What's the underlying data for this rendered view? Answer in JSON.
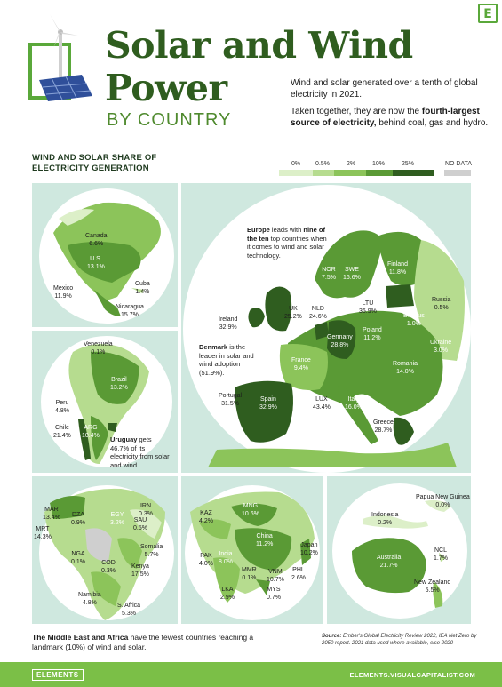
{
  "header": {
    "badge": "E",
    "title_line1": "Solar and Wind",
    "title_line2": "Power",
    "subtitle": "BY COUNTRY",
    "intro_p1": "Wind and solar generated over a tenth of global electricity in 2021.",
    "intro_p2_pre": "Taken together, they are now the",
    "intro_p2_bold": "fourth-largest source of electricity,",
    "intro_p2_post": "behind coal, gas and hydro."
  },
  "section_label": "WIND AND SOLAR SHARE OF ELECTRICITY GENERATION",
  "legend": {
    "labels": [
      "0%",
      "0.5%",
      "2%",
      "10%",
      "25%",
      "NO DATA"
    ],
    "colors": [
      "#dcefc8",
      "#b6dc8f",
      "#8cc45a",
      "#5a9a35",
      "#2f5d1f",
      "#cfcfcf"
    ]
  },
  "americas": {
    "labels": [
      {
        "name": "Canada",
        "value": "6.6%"
      },
      {
        "name": "U.S.",
        "value": "13.1%"
      },
      {
        "name": "Mexico",
        "value": "11.9%"
      },
      {
        "name": "Cuba",
        "value": "1.4%"
      },
      {
        "name": "Nicaragua",
        "value": "15.7%"
      }
    ]
  },
  "south_america": {
    "labels": [
      {
        "name": "Venezuela",
        "value": "0.1%"
      },
      {
        "name": "Brazil",
        "value": "13.2%"
      },
      {
        "name": "Peru",
        "value": "4.8%"
      },
      {
        "name": "Chile",
        "value": "21.4%"
      },
      {
        "name": "ARG",
        "value": "10.4%"
      }
    ],
    "callout_bold": "Uruguay",
    "callout_rest": " gets 46.7% of its electricity from solar and wind."
  },
  "europe": {
    "callout_bold1": "Europe",
    "callout_mid": " leads with ",
    "callout_bold2": "nine of the ten",
    "callout_rest": " top countries when it comes to wind and solar technology.",
    "denmark_bold": "Denmark",
    "denmark_rest": " is the leader in solar and wind adoption (51.9%).",
    "labels": [
      {
        "name": "NOR",
        "value": "7.5%"
      },
      {
        "name": "SWE",
        "value": "16.6%"
      },
      {
        "name": "Finland",
        "value": "11.8%"
      },
      {
        "name": "Russia",
        "value": "0.5%"
      },
      {
        "name": "UK",
        "value": "25.2%"
      },
      {
        "name": "NLD",
        "value": "24.6%"
      },
      {
        "name": "LTU",
        "value": "36.9%"
      },
      {
        "name": "Belarus",
        "value": "1.0%"
      },
      {
        "name": "Ireland",
        "value": "32.9%"
      },
      {
        "name": "Germany",
        "value": "28.8%"
      },
      {
        "name": "Poland",
        "value": "11.2%"
      },
      {
        "name": "Ukraine",
        "value": "3.0%"
      },
      {
        "name": "France",
        "value": "9.4%"
      },
      {
        "name": "Romania",
        "value": "14.0%"
      },
      {
        "name": "Portugal",
        "value": "31.5%"
      },
      {
        "name": "Spain",
        "value": "32.9%"
      },
      {
        "name": "LUX",
        "value": "43.4%"
      },
      {
        "name": "Italy",
        "value": "16.0%"
      },
      {
        "name": "Greece",
        "value": "28.7%"
      }
    ]
  },
  "africa": {
    "labels": [
      {
        "name": "MAR",
        "value": "13.4%"
      },
      {
        "name": "DZA",
        "value": "0.9%"
      },
      {
        "name": "EGY",
        "value": "3.2%"
      },
      {
        "name": "IRN",
        "value": "0.3%"
      },
      {
        "name": "SAU",
        "value": "0.5%"
      },
      {
        "name": "MRT",
        "value": "14.3%"
      },
      {
        "name": "Somalia",
        "value": "5.7%"
      },
      {
        "name": "NGA",
        "value": "0.1%"
      },
      {
        "name": "COD",
        "value": "0.3%"
      },
      {
        "name": "Kenya",
        "value": "17.5%"
      },
      {
        "name": "Namibia",
        "value": "4.8%"
      },
      {
        "name": "S. Africa",
        "value": "5.3%"
      }
    ]
  },
  "asia": {
    "labels": [
      {
        "name": "KAZ",
        "value": "4.2%"
      },
      {
        "name": "MNG",
        "value": "10.6%"
      },
      {
        "name": "China",
        "value": "11.2%"
      },
      {
        "name": "Japan",
        "value": "10.2%"
      },
      {
        "name": "PAK",
        "value": "4.0%"
      },
      {
        "name": "India",
        "value": "8.0%"
      },
      {
        "name": "MMR",
        "value": "0.1%"
      },
      {
        "name": "VNM",
        "value": "10.7%"
      },
      {
        "name": "PHL",
        "value": "2.6%"
      },
      {
        "name": "LKA",
        "value": "2.9%"
      },
      {
        "name": "MYS",
        "value": "0.7%"
      }
    ]
  },
  "oceania": {
    "labels": [
      {
        "name": "Papua New Guinea",
        "value": "0.0%"
      },
      {
        "name": "Indonesia",
        "value": "0.2%"
      },
      {
        "name": "Australia",
        "value": "21.7%"
      },
      {
        "name": "NCL",
        "value": "1.7%"
      },
      {
        "name": "New Zealand",
        "value": "5.5%"
      }
    ]
  },
  "footer_note_bold": "The Middle East and Africa",
  "footer_note_rest": " have the fewest countries reaching a landmark (10%) of wind and solar.",
  "source_bold": "Source:",
  "source_rest": " Ember's Global Electricity Review 2022, IEA Net Zero by 2050 report. 2021 data used where available, else 2020",
  "footer": {
    "brand": "ELEMENTS",
    "url": "ELEMENTS.VISUALCAPITALIST.COM"
  }
}
